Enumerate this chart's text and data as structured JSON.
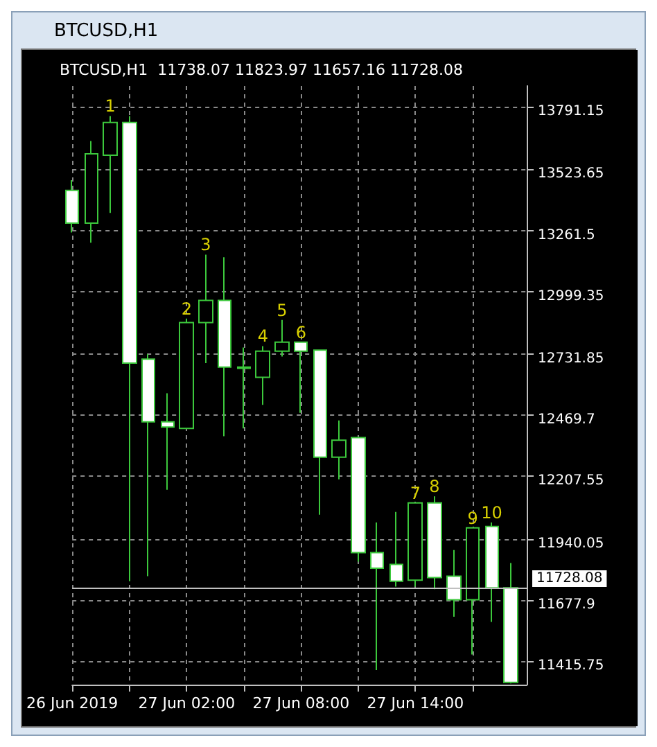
{
  "chart_data": {
    "type": "candlestick",
    "title": "BTCUSD,H1",
    "subtitle": "BTCUSD,H1  11738.07 11823.97 11657.16 11728.08",
    "x": [
      "2019-06-26T20:00",
      "2019-06-26T21:00",
      "2019-06-26T22:00",
      "2019-06-26T23:00",
      "2019-06-27T00:00",
      "2019-06-27T01:00",
      "2019-06-27T02:00",
      "2019-06-27T03:00",
      "2019-06-27T04:00",
      "2019-06-27T05:00",
      "2019-06-27T06:00",
      "2019-06-27T07:00",
      "2019-06-27T08:00",
      "2019-06-27T09:00",
      "2019-06-27T10:00",
      "2019-06-27T11:00",
      "2019-06-27T12:00",
      "2019-06-27T13:00",
      "2019-06-27T14:00",
      "2019-06-27T15:00",
      "2019-06-27T16:00",
      "2019-06-27T17:00",
      "2019-06-27T18:00",
      "2019-06-27T19:00"
    ],
    "ohlc": [
      [
        13433,
        13477,
        13253,
        13293
      ],
      [
        13293,
        13645,
        13209,
        13590
      ],
      [
        13584,
        13752,
        13337,
        13724
      ],
      [
        13724,
        13752,
        11758,
        12693
      ],
      [
        12710,
        12732,
        11780,
        12441
      ],
      [
        12441,
        12564,
        12150,
        12419
      ],
      [
        12413,
        12884,
        12413,
        12867
      ],
      [
        12867,
        13158,
        12693,
        12962
      ],
      [
        12962,
        13147,
        12380,
        12676
      ],
      [
        12676,
        12760,
        12413,
        12671
      ],
      [
        12632,
        12766,
        12514,
        12744
      ],
      [
        12744,
        12878,
        12721,
        12783
      ],
      [
        12783,
        12783,
        12480,
        12744
      ],
      [
        12749,
        12749,
        12043,
        12290
      ],
      [
        12290,
        12447,
        12195,
        12363
      ],
      [
        12374,
        12374,
        11842,
        11881
      ],
      [
        11881,
        12010,
        11377,
        11814
      ],
      [
        11830,
        12055,
        11735,
        11758
      ],
      [
        11763,
        12094,
        11735,
        12094
      ],
      [
        12094,
        12122,
        11724,
        11774
      ],
      [
        11780,
        11892,
        11606,
        11679
      ],
      [
        11679,
        11987,
        11444,
        11987
      ],
      [
        11993,
        12010,
        11584,
        11730
      ],
      [
        11730,
        11836,
        11320,
        11325
      ]
    ],
    "color": "#3cc83c",
    "xlim": [
      "2019-06-26T20:00",
      "2019-06-27T19:50"
    ],
    "xticks": [
      {
        "value": "2019-06-26T20:00",
        "label": "26 Jun 2019"
      },
      {
        "value": "2019-06-26T23:00",
        "label": null
      },
      {
        "value": "2019-06-27T02:00",
        "label": "27 Jun 02:00"
      },
      {
        "value": "2019-06-27T05:00",
        "label": null
      },
      {
        "value": "2019-06-27T08:00",
        "label": "27 Jun 08:00"
      },
      {
        "value": "2019-06-27T11:00",
        "label": null
      },
      {
        "value": "2019-06-27T14:00",
        "label": "27 Jun 14:00"
      },
      {
        "value": "2019-06-27T17:00",
        "label": null
      }
    ],
    "ylim": [
      11315,
      13881
    ],
    "yticks": [
      11415.75,
      11677.9,
      11940.05,
      12207.55,
      12469.7,
      12731.85,
      12999.35,
      13261.5,
      13523.65,
      13791.15
    ],
    "grid": true,
    "ref_lines": [
      {
        "axis": "y",
        "value": 11728.08,
        "label": "11728.08",
        "color": "#c0c0c0"
      }
    ],
    "annotations": [
      {
        "text": "1",
        "x": "2019-06-26T22:00",
        "y": 13752
      },
      {
        "text": "2",
        "x": "2019-06-27T02:00",
        "y": 12884
      },
      {
        "text": "3",
        "x": "2019-06-27T03:00",
        "y": 13158
      },
      {
        "text": "4",
        "x": "2019-06-27T06:00",
        "y": 12766
      },
      {
        "text": "5",
        "x": "2019-06-27T07:00",
        "y": 12878
      },
      {
        "text": "6",
        "x": "2019-06-27T08:00",
        "y": 12783
      },
      {
        "text": "7",
        "x": "2019-06-27T14:00",
        "y": 12094
      },
      {
        "text": "8",
        "x": "2019-06-27T15:00",
        "y": 12122
      },
      {
        "text": "9",
        "x": "2019-06-27T17:00",
        "y": 11987
      },
      {
        "text": "10",
        "x": "2019-06-27T18:00",
        "y": 12010
      }
    ]
  }
}
